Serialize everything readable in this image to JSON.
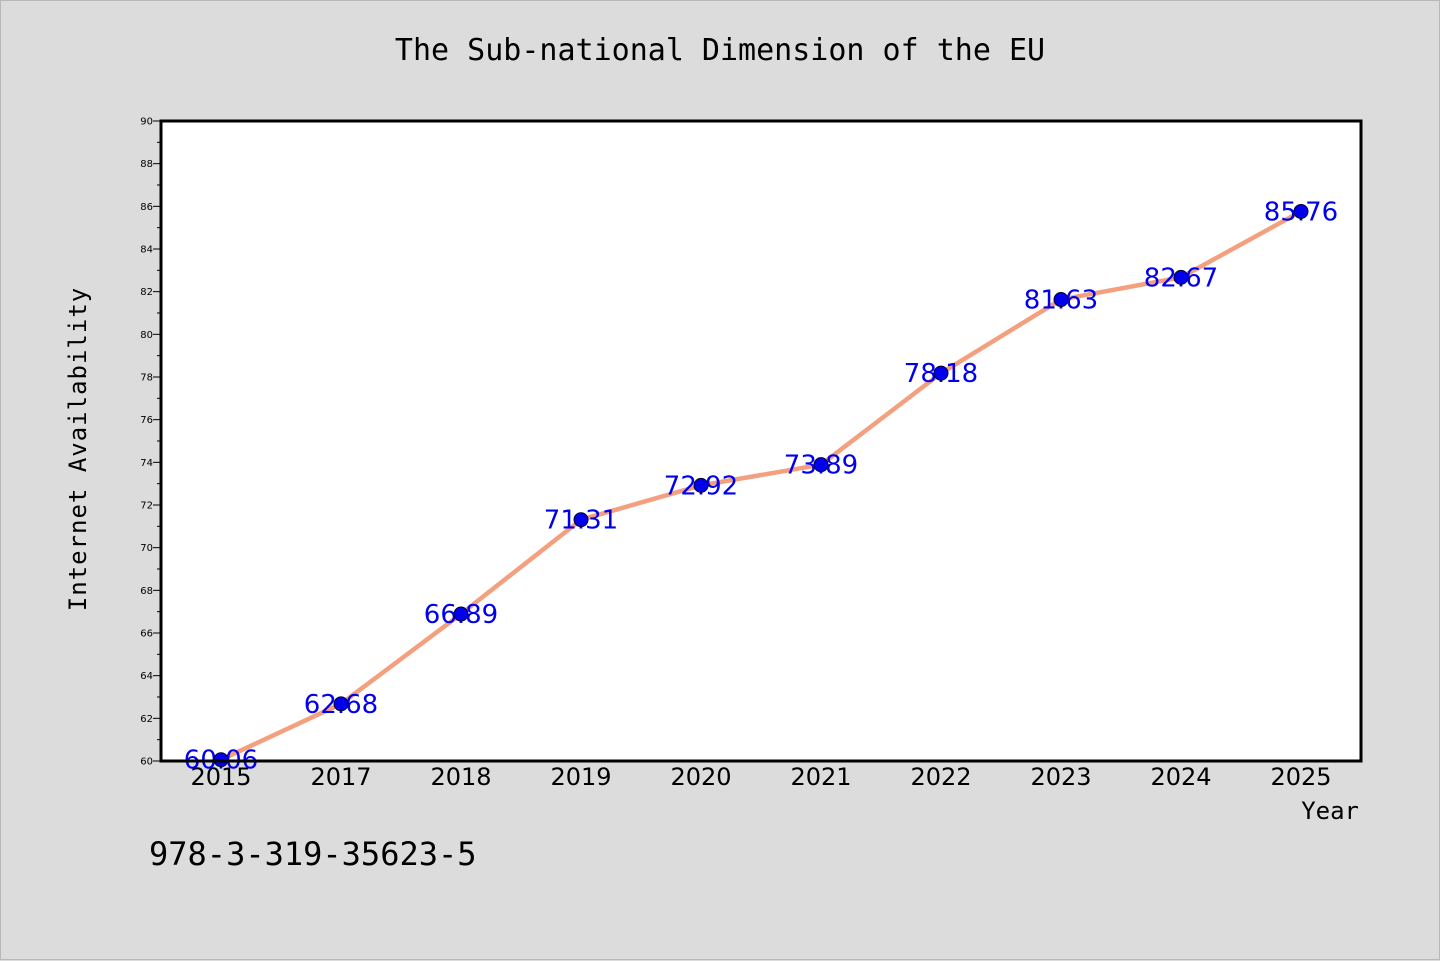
{
  "chart_data": {
    "type": "line",
    "title": "The Sub-national Dimension of the EU",
    "xlabel": "Year",
    "ylabel": "Internet Availability",
    "categories": [
      "2015",
      "2017",
      "2018",
      "2019",
      "2020",
      "2021",
      "2022",
      "2023",
      "2024",
      "2025"
    ],
    "series": [
      {
        "values": [
          60.06,
          62.68,
          66.89,
          71.31,
          72.92,
          73.89,
          78.18,
          81.63,
          82.67,
          85.76
        ],
        "labels": [
          "60.06",
          "62.68",
          "66.89",
          "71.31",
          "72.92",
          "73.89",
          "78.18",
          "81.63",
          "82.67",
          "85.76"
        ]
      }
    ],
    "ylim": [
      60,
      90
    ],
    "yticks": [
      60,
      62,
      64,
      66,
      68,
      70,
      72,
      74,
      76,
      78,
      80,
      82,
      84,
      86,
      88,
      90
    ],
    "grid": false,
    "legend": false,
    "colors": {
      "line": "#f4a07f",
      "marker": "#0000ee",
      "label": "#0000ee",
      "background": "#dcdcdc",
      "plot_background": "#ffffff"
    }
  },
  "footer": {
    "id_text": "978-3-319-35623-5"
  }
}
